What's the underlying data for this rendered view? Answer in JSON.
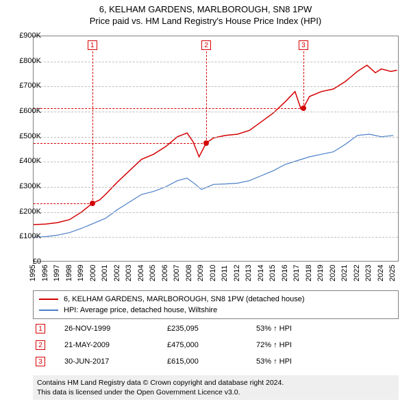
{
  "title_line1": "6, KELHAM GARDENS, MARLBOROUGH, SN8 1PW",
  "title_line2": "Price paid vs. HM Land Registry's House Price Index (HPI)",
  "chart": {
    "type": "line",
    "x_domain": [
      1995,
      2025.5
    ],
    "y_domain": [
      0,
      900000
    ],
    "ytick_step": 100000,
    "ytick_labels": [
      "£0",
      "£100K",
      "£200K",
      "£300K",
      "£400K",
      "£500K",
      "£600K",
      "£700K",
      "£800K",
      "£900K"
    ],
    "xtick_years": [
      1995,
      1996,
      1997,
      1998,
      1999,
      2000,
      2001,
      2002,
      2003,
      2004,
      2005,
      2006,
      2007,
      2008,
      2009,
      2010,
      2011,
      2012,
      2013,
      2014,
      2015,
      2016,
      2017,
      2018,
      2019,
      2020,
      2021,
      2022,
      2023,
      2024,
      2025
    ],
    "grid_color": "#c0c0c0",
    "border_color": "#808080",
    "background_color": "#ffffff",
    "series": [
      {
        "name": "property",
        "label": "6, KELHAM GARDENS, MARLBOROUGH, SN8 1PW (detached house)",
        "color": "#d40000",
        "width": 1.5,
        "points": [
          [
            1995,
            150000
          ],
          [
            1996,
            152000
          ],
          [
            1997,
            158000
          ],
          [
            1998,
            170000
          ],
          [
            1999,
            200000
          ],
          [
            1999.9,
            235095
          ],
          [
            2000.5,
            248000
          ],
          [
            2001,
            270000
          ],
          [
            2002,
            320000
          ],
          [
            2003,
            365000
          ],
          [
            2004,
            410000
          ],
          [
            2005,
            430000
          ],
          [
            2006,
            460000
          ],
          [
            2007,
            500000
          ],
          [
            2007.8,
            515000
          ],
          [
            2008.3,
            480000
          ],
          [
            2008.8,
            420000
          ],
          [
            2009.4,
            475000
          ],
          [
            2010,
            495000
          ],
          [
            2011,
            505000
          ],
          [
            2012,
            510000
          ],
          [
            2013,
            525000
          ],
          [
            2014,
            560000
          ],
          [
            2015,
            595000
          ],
          [
            2016,
            640000
          ],
          [
            2016.8,
            680000
          ],
          [
            2017.3,
            610000
          ],
          [
            2017.5,
            615000
          ],
          [
            2018,
            660000
          ],
          [
            2019,
            680000
          ],
          [
            2020,
            690000
          ],
          [
            2021,
            720000
          ],
          [
            2022,
            760000
          ],
          [
            2022.8,
            785000
          ],
          [
            2023.5,
            755000
          ],
          [
            2024,
            770000
          ],
          [
            2024.8,
            760000
          ],
          [
            2025.3,
            765000
          ]
        ]
      },
      {
        "name": "hpi",
        "label": "HPI: Average price, detached house, Wiltshire",
        "color": "#4a7ec8",
        "width": 1.2,
        "points": [
          [
            1995,
            100000
          ],
          [
            1996,
            102000
          ],
          [
            1997,
            108000
          ],
          [
            1998,
            118000
          ],
          [
            1999,
            135000
          ],
          [
            2000,
            155000
          ],
          [
            2001,
            175000
          ],
          [
            2002,
            210000
          ],
          [
            2003,
            240000
          ],
          [
            2004,
            270000
          ],
          [
            2005,
            282000
          ],
          [
            2006,
            300000
          ],
          [
            2007,
            325000
          ],
          [
            2007.8,
            335000
          ],
          [
            2008.5,
            310000
          ],
          [
            2009,
            290000
          ],
          [
            2010,
            310000
          ],
          [
            2011,
            312000
          ],
          [
            2012,
            315000
          ],
          [
            2013,
            325000
          ],
          [
            2014,
            345000
          ],
          [
            2015,
            365000
          ],
          [
            2016,
            390000
          ],
          [
            2017,
            405000
          ],
          [
            2018,
            420000
          ],
          [
            2019,
            430000
          ],
          [
            2020,
            440000
          ],
          [
            2021,
            470000
          ],
          [
            2022,
            505000
          ],
          [
            2023,
            510000
          ],
          [
            2024,
            500000
          ],
          [
            2025,
            505000
          ]
        ]
      }
    ],
    "markers": [
      {
        "n": "1",
        "x": 1999.9,
        "y": 235095,
        "color": "#d40000"
      },
      {
        "n": "2",
        "x": 2009.4,
        "y": 475000,
        "color": "#d40000"
      },
      {
        "n": "3",
        "x": 2017.5,
        "y": 615000,
        "color": "#d40000"
      }
    ]
  },
  "legend": {
    "items": [
      {
        "color": "#d40000",
        "label": "6, KELHAM GARDENS, MARLBOROUGH, SN8 1PW (detached house)"
      },
      {
        "color": "#4a7ec8",
        "label": "HPI: Average price, detached house, Wiltshire"
      }
    ]
  },
  "transactions": [
    {
      "n": "1",
      "color": "#d40000",
      "date": "26-NOV-1999",
      "price": "£235,095",
      "pct": "53% ↑ HPI"
    },
    {
      "n": "2",
      "color": "#d40000",
      "date": "21-MAY-2009",
      "price": "£475,000",
      "pct": "72% ↑ HPI"
    },
    {
      "n": "3",
      "color": "#d40000",
      "date": "30-JUN-2017",
      "price": "£615,000",
      "pct": "53% ↑ HPI"
    }
  ],
  "footer_line1": "Contains HM Land Registry data © Crown copyright and database right 2024.",
  "footer_line2": "This data is licensed under the Open Government Licence v3.0."
}
